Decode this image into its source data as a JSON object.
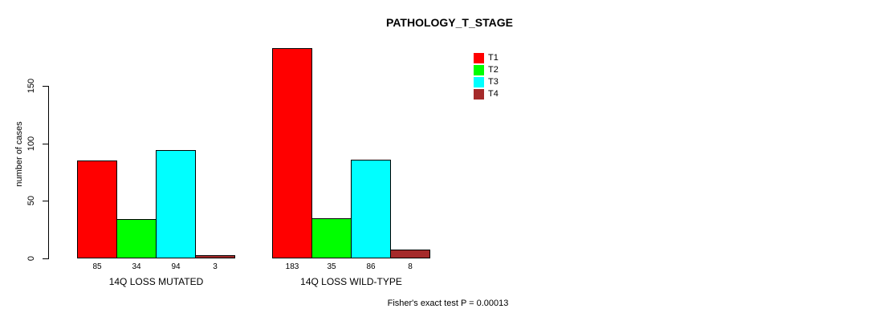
{
  "chart_data": {
    "type": "bar",
    "title": "PATHOLOGY_T_STAGE",
    "ylabel": "number of cases",
    "xlabel": "",
    "categories": [
      "14Q LOSS MUTATED",
      "14Q LOSS WILD-TYPE"
    ],
    "series": [
      {
        "name": "T1",
        "color": "#FF0000",
        "values": [
          85,
          183
        ]
      },
      {
        "name": "T2",
        "color": "#00FF00",
        "values": [
          34,
          35
        ]
      },
      {
        "name": "T3",
        "color": "#00FFFF",
        "values": [
          94,
          86
        ]
      },
      {
        "name": "T4",
        "color": "#A52A2A",
        "values": [
          3,
          8
        ]
      }
    ],
    "yticks": [
      0,
      50,
      100,
      150
    ],
    "ylim": [
      0,
      183
    ],
    "grid": false,
    "show_values_under_bars": true,
    "legend_position": "top-right",
    "legend_entries": [
      "T1",
      "T2",
      "T3",
      "T4"
    ],
    "annotation": "Fisher's exact test P = 0.00013",
    "axis_color": "#000000",
    "bar_border_color": "#000000",
    "background_color": "#FFFFFF"
  }
}
